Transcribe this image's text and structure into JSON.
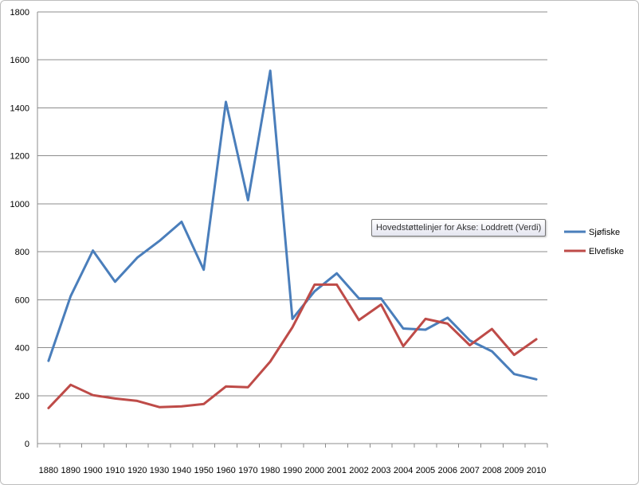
{
  "chart_data": {
    "type": "line",
    "categories": [
      "1880",
      "1890",
      "1900",
      "1910",
      "1920",
      "1930",
      "1940",
      "1950",
      "1960",
      "1970",
      "1980",
      "1990",
      "2000",
      "2001",
      "2002",
      "2003",
      "2004",
      "2005",
      "2006",
      "2007",
      "2008",
      "2009",
      "2010"
    ],
    "series": [
      {
        "name": "Sjøfiske",
        "color": "#4a7ebb",
        "values": [
          345,
          615,
          805,
          675,
          775,
          845,
          925,
          725,
          1425,
          1015,
          1555,
          520,
          635,
          710,
          605,
          605,
          480,
          475,
          525,
          430,
          385,
          290,
          268
        ]
      },
      {
        "name": "Elvefiske",
        "color": "#be4b48",
        "values": [
          148,
          245,
          202,
          188,
          178,
          152,
          155,
          165,
          238,
          235,
          342,
          485,
          663,
          663,
          515,
          580,
          406,
          520,
          500,
          410,
          478,
          370,
          435
        ]
      }
    ],
    "ylim": [
      0,
      1800
    ],
    "yticks": [
      "0",
      "200",
      "400",
      "600",
      "800",
      "1000",
      "1200",
      "1400",
      "1600",
      "1800"
    ],
    "grid": true,
    "legend_position": "right",
    "tooltip": "Hovedstøttelinjer for Akse: Loddrett (Verdi)"
  }
}
